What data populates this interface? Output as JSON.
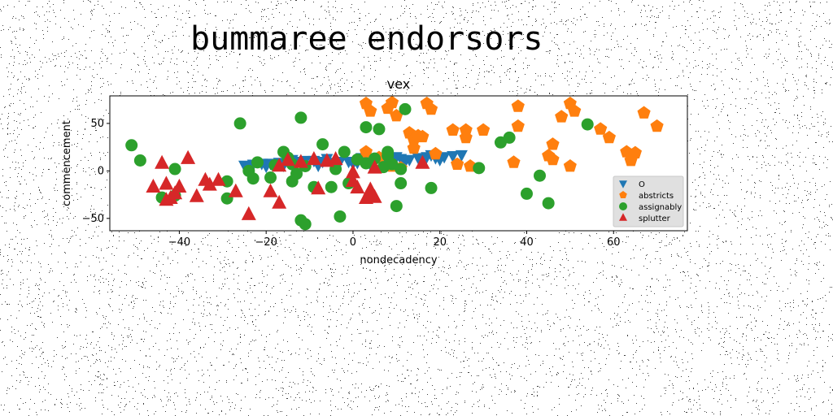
{
  "figure": {
    "suptitle": "bummaree endorsors"
  },
  "chart_data": {
    "type": "scatter",
    "title": "vex",
    "xlabel": "nondecadency",
    "ylabel": "commencement",
    "xlim": [
      -56,
      77
    ],
    "ylim": [
      -63,
      79
    ],
    "xticks": [
      -40,
      -20,
      0,
      20,
      40,
      60
    ],
    "yticks": [
      -50,
      0,
      50
    ],
    "grid": false,
    "legend_position": "lower-right",
    "colors": {
      "O": "#1f77b4",
      "abstricts": "#ff7f0e",
      "assignably": "#2ca02c",
      "splutter": "#d62728"
    },
    "series": [
      {
        "name": "O",
        "marker": "triangle-down",
        "points": [
          [
            -25,
            6
          ],
          [
            -23,
            7
          ],
          [
            -21,
            8
          ],
          [
            -19,
            8
          ],
          [
            -17,
            9
          ],
          [
            -15,
            10
          ],
          [
            -13,
            10
          ],
          [
            -11,
            11
          ],
          [
            -9,
            11
          ],
          [
            -7,
            10
          ],
          [
            -5,
            9
          ],
          [
            -3,
            10
          ],
          [
            -1,
            10
          ],
          [
            1,
            9
          ],
          [
            3,
            11
          ],
          [
            5,
            12
          ],
          [
            7,
            11
          ],
          [
            9,
            12
          ],
          [
            11,
            13
          ],
          [
            13,
            12
          ],
          [
            15,
            14
          ],
          [
            17,
            15
          ],
          [
            19,
            14
          ],
          [
            21,
            15
          ],
          [
            23,
            16
          ],
          [
            25,
            17
          ],
          [
            -24,
            4
          ],
          [
            -20,
            5
          ],
          [
            -16,
            6
          ],
          [
            -12,
            7
          ],
          [
            -8,
            6
          ],
          [
            -4,
            7
          ],
          [
            0,
            8
          ],
          [
            4,
            7
          ],
          [
            8,
            9
          ],
          [
            12,
            10
          ],
          [
            16,
            11
          ],
          [
            20,
            12
          ],
          [
            -6,
            13
          ],
          [
            2,
            14
          ],
          [
            10,
            15
          ],
          [
            18,
            17
          ],
          [
            -14,
            12
          ]
        ]
      },
      {
        "name": "abstricts",
        "marker": "pentagon",
        "points": [
          [
            3,
            71
          ],
          [
            4,
            63
          ],
          [
            8,
            66
          ],
          [
            9,
            72
          ],
          [
            10,
            58
          ],
          [
            13,
            40
          ],
          [
            14,
            33
          ],
          [
            14,
            24
          ],
          [
            15,
            37
          ],
          [
            16,
            36
          ],
          [
            17,
            71
          ],
          [
            18,
            65
          ],
          [
            19,
            18
          ],
          [
            23,
            43
          ],
          [
            24,
            7
          ],
          [
            26,
            43
          ],
          [
            26,
            35
          ],
          [
            27,
            5
          ],
          [
            30,
            43
          ],
          [
            37,
            9
          ],
          [
            38,
            68
          ],
          [
            38,
            47
          ],
          [
            45,
            16
          ],
          [
            46,
            28
          ],
          [
            46,
            12
          ],
          [
            48,
            57
          ],
          [
            50,
            71
          ],
          [
            50,
            5
          ],
          [
            51,
            63
          ],
          [
            57,
            44
          ],
          [
            59,
            35
          ],
          [
            63,
            20
          ],
          [
            64,
            11
          ],
          [
            65,
            19
          ],
          [
            67,
            61
          ],
          [
            70,
            47
          ],
          [
            3,
            20
          ],
          [
            6,
            14
          ],
          [
            9,
            5
          ],
          [
            11,
            3
          ]
        ]
      },
      {
        "name": "assignably",
        "marker": "circle",
        "points": [
          [
            -51,
            27
          ],
          [
            -49,
            11
          ],
          [
            -44,
            -28
          ],
          [
            -41,
            -26
          ],
          [
            -41,
            2
          ],
          [
            -29,
            -29
          ],
          [
            -29,
            -11
          ],
          [
            -26,
            50
          ],
          [
            -24,
            0
          ],
          [
            -23,
            -8
          ],
          [
            -22,
            9
          ],
          [
            -19,
            -7
          ],
          [
            -18,
            6
          ],
          [
            -16,
            20
          ],
          [
            -15,
            14
          ],
          [
            -14,
            7
          ],
          [
            -14,
            -11
          ],
          [
            -13,
            -3
          ],
          [
            -12,
            56
          ],
          [
            -12,
            -52
          ],
          [
            -11,
            -56
          ],
          [
            -11,
            5
          ],
          [
            -9,
            -17
          ],
          [
            -7,
            28
          ],
          [
            -5,
            -17
          ],
          [
            -4,
            2
          ],
          [
            -3,
            -48
          ],
          [
            -2,
            20
          ],
          [
            -1,
            -13
          ],
          [
            1,
            12
          ],
          [
            3,
            8
          ],
          [
            3,
            46
          ],
          [
            5,
            13
          ],
          [
            6,
            44
          ],
          [
            7,
            4
          ],
          [
            8,
            16
          ],
          [
            8,
            20
          ],
          [
            9,
            7
          ],
          [
            10,
            -37
          ],
          [
            11,
            -13
          ],
          [
            11,
            2
          ],
          [
            12,
            65
          ],
          [
            18,
            -18
          ],
          [
            29,
            3
          ],
          [
            34,
            30
          ],
          [
            36,
            35
          ],
          [
            40,
            -24
          ],
          [
            43,
            -5
          ],
          [
            45,
            -34
          ],
          [
            54,
            49
          ]
        ]
      },
      {
        "name": "splutter",
        "marker": "triangle-up",
        "points": [
          [
            -46,
            -17
          ],
          [
            -44,
            8
          ],
          [
            -43,
            -14
          ],
          [
            -43,
            -31
          ],
          [
            -42,
            -29
          ],
          [
            -41,
            -24
          ],
          [
            -40,
            -17
          ],
          [
            -38,
            13
          ],
          [
            -36,
            -27
          ],
          [
            -34,
            -10
          ],
          [
            -33,
            -15
          ],
          [
            -31,
            -10
          ],
          [
            -27,
            -22
          ],
          [
            -24,
            -46
          ],
          [
            -19,
            -22
          ],
          [
            -17,
            -34
          ],
          [
            -17,
            5
          ],
          [
            -15,
            11
          ],
          [
            -12,
            9
          ],
          [
            -9,
            12
          ],
          [
            -8,
            -19
          ],
          [
            -6,
            10
          ],
          [
            -4,
            12
          ],
          [
            0,
            -11
          ],
          [
            0,
            -2
          ],
          [
            1,
            -18
          ],
          [
            3,
            -29
          ],
          [
            4,
            -20
          ],
          [
            4,
            -25
          ],
          [
            5,
            3
          ],
          [
            5,
            -28
          ],
          [
            16,
            8
          ]
        ]
      }
    ]
  }
}
